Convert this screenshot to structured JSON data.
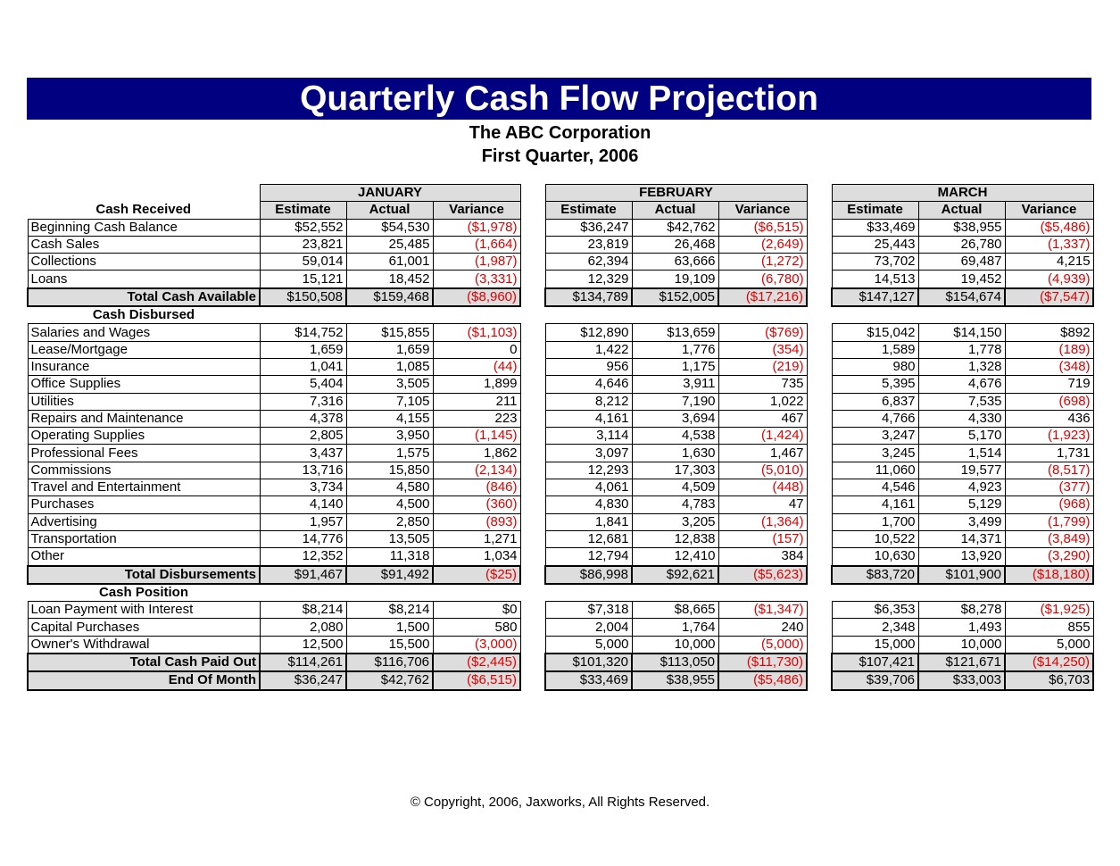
{
  "title": "Quarterly Cash Flow Projection",
  "subtitle": "The ABC Corporation",
  "period": "First Quarter, 2006",
  "months": [
    "JANUARY",
    "FEBRUARY",
    "MARCH"
  ],
  "columns": [
    "Estimate",
    "Actual",
    "Variance"
  ],
  "sections": [
    {
      "heading": "Cash Received",
      "items": [
        {
          "label": "Beginning Cash Balance",
          "cells": [
            "$52,552",
            "$54,530",
            "($1,978)",
            "$36,247",
            "$42,762",
            "($6,515)",
            "$33,469",
            "$38,955",
            "($5,486)"
          ]
        },
        {
          "label": "Cash Sales",
          "cells": [
            "23,821",
            "25,485",
            "(1,664)",
            "23,819",
            "26,468",
            "(2,649)",
            "25,443",
            "26,780",
            "(1,337)"
          ]
        },
        {
          "label": "Collections",
          "cells": [
            "59,014",
            "61,001",
            "(1,987)",
            "62,394",
            "63,666",
            "(1,272)",
            "73,702",
            "69,487",
            "4,215"
          ]
        },
        {
          "label": "Loans",
          "cells": [
            "15,121",
            "18,452",
            "(3,331)",
            "12,329",
            "19,109",
            "(6,780)",
            "14,513",
            "19,452",
            "(4,939)"
          ]
        }
      ],
      "totals": [
        {
          "label": "Total Cash Available",
          "cells": [
            "$150,508",
            "$159,468",
            "($8,960)",
            "$134,789",
            "$152,005",
            "($17,216)",
            "$147,127",
            "$154,674",
            "($7,547)"
          ]
        }
      ]
    },
    {
      "heading": "Cash Disbursed",
      "items": [
        {
          "label": "Salaries and Wages",
          "cells": [
            "$14,752",
            "$15,855",
            "($1,103)",
            "$12,890",
            "$13,659",
            "($769)",
            "$15,042",
            "$14,150",
            "$892"
          ]
        },
        {
          "label": "Lease/Mortgage",
          "cells": [
            "1,659",
            "1,659",
            "0",
            "1,422",
            "1,776",
            "(354)",
            "1,589",
            "1,778",
            "(189)"
          ]
        },
        {
          "label": "Insurance",
          "cells": [
            "1,041",
            "1,085",
            "(44)",
            "956",
            "1,175",
            "(219)",
            "980",
            "1,328",
            "(348)"
          ]
        },
        {
          "label": "Office Supplies",
          "cells": [
            "5,404",
            "3,505",
            "1,899",
            "4,646",
            "3,911",
            "735",
            "5,395",
            "4,676",
            "719"
          ]
        },
        {
          "label": "Utilities",
          "cells": [
            "7,316",
            "7,105",
            "211",
            "8,212",
            "7,190",
            "1,022",
            "6,837",
            "7,535",
            "(698)"
          ]
        },
        {
          "label": "Repairs and Maintenance",
          "cells": [
            "4,378",
            "4,155",
            "223",
            "4,161",
            "3,694",
            "467",
            "4,766",
            "4,330",
            "436"
          ]
        },
        {
          "label": "Operating Supplies",
          "cells": [
            "2,805",
            "3,950",
            "(1,145)",
            "3,114",
            "4,538",
            "(1,424)",
            "3,247",
            "5,170",
            "(1,923)"
          ]
        },
        {
          "label": "Professional Fees",
          "cells": [
            "3,437",
            "1,575",
            "1,862",
            "3,097",
            "1,630",
            "1,467",
            "3,245",
            "1,514",
            "1,731"
          ]
        },
        {
          "label": "Commissions",
          "cells": [
            "13,716",
            "15,850",
            "(2,134)",
            "12,293",
            "17,303",
            "(5,010)",
            "11,060",
            "19,577",
            "(8,517)"
          ]
        },
        {
          "label": "Travel and Entertainment",
          "cells": [
            "3,734",
            "4,580",
            "(846)",
            "4,061",
            "4,509",
            "(448)",
            "4,546",
            "4,923",
            "(377)"
          ]
        },
        {
          "label": "Purchases",
          "cells": [
            "4,140",
            "4,500",
            "(360)",
            "4,830",
            "4,783",
            "47",
            "4,161",
            "5,129",
            "(968)"
          ]
        },
        {
          "label": "Advertising",
          "cells": [
            "1,957",
            "2,850",
            "(893)",
            "1,841",
            "3,205",
            "(1,364)",
            "1,700",
            "3,499",
            "(1,799)"
          ]
        },
        {
          "label": "Transportation",
          "cells": [
            "14,776",
            "13,505",
            "1,271",
            "12,681",
            "12,838",
            "(157)",
            "10,522",
            "14,371",
            "(3,849)"
          ]
        },
        {
          "label": "Other",
          "cells": [
            "12,352",
            "11,318",
            "1,034",
            "12,794",
            "12,410",
            "384",
            "10,630",
            "13,920",
            "(3,290)"
          ]
        }
      ],
      "totals": [
        {
          "label": "Total Disbursements",
          "cells": [
            "$91,467",
            "$91,492",
            "($25)",
            "$86,998",
            "$92,621",
            "($5,623)",
            "$83,720",
            "$101,900",
            "($18,180)"
          ]
        }
      ]
    },
    {
      "heading": "Cash Position",
      "items": [
        {
          "label": "Loan Payment with Interest",
          "cells": [
            "$8,214",
            "$8,214",
            "$0",
            "$7,318",
            "$8,665",
            "($1,347)",
            "$6,353",
            "$8,278",
            "($1,925)"
          ]
        },
        {
          "label": "Capital Purchases",
          "cells": [
            "2,080",
            "1,500",
            "580",
            "2,004",
            "1,764",
            "240",
            "2,348",
            "1,493",
            "855"
          ]
        },
        {
          "label": "Owner's Withdrawal",
          "cells": [
            "12,500",
            "15,500",
            "(3,000)",
            "5,000",
            "10,000",
            "(5,000)",
            "15,000",
            "10,000",
            "5,000"
          ]
        }
      ],
      "totals": [
        {
          "label": "Total Cash Paid Out",
          "cells": [
            "$114,261",
            "$116,706",
            "($2,445)",
            "$101,320",
            "$113,050",
            "($11,730)",
            "$107,421",
            "$121,671",
            "($14,250)"
          ]
        },
        {
          "label": "End Of Month",
          "cells": [
            "$36,247",
            "$42,762",
            "($6,515)",
            "$33,469",
            "$38,955",
            "($5,486)",
            "$39,706",
            "$33,003",
            "$6,703"
          ]
        }
      ]
    }
  ],
  "copyright": "© Copyright, 2006, Jaxworks, All Rights Reserved."
}
